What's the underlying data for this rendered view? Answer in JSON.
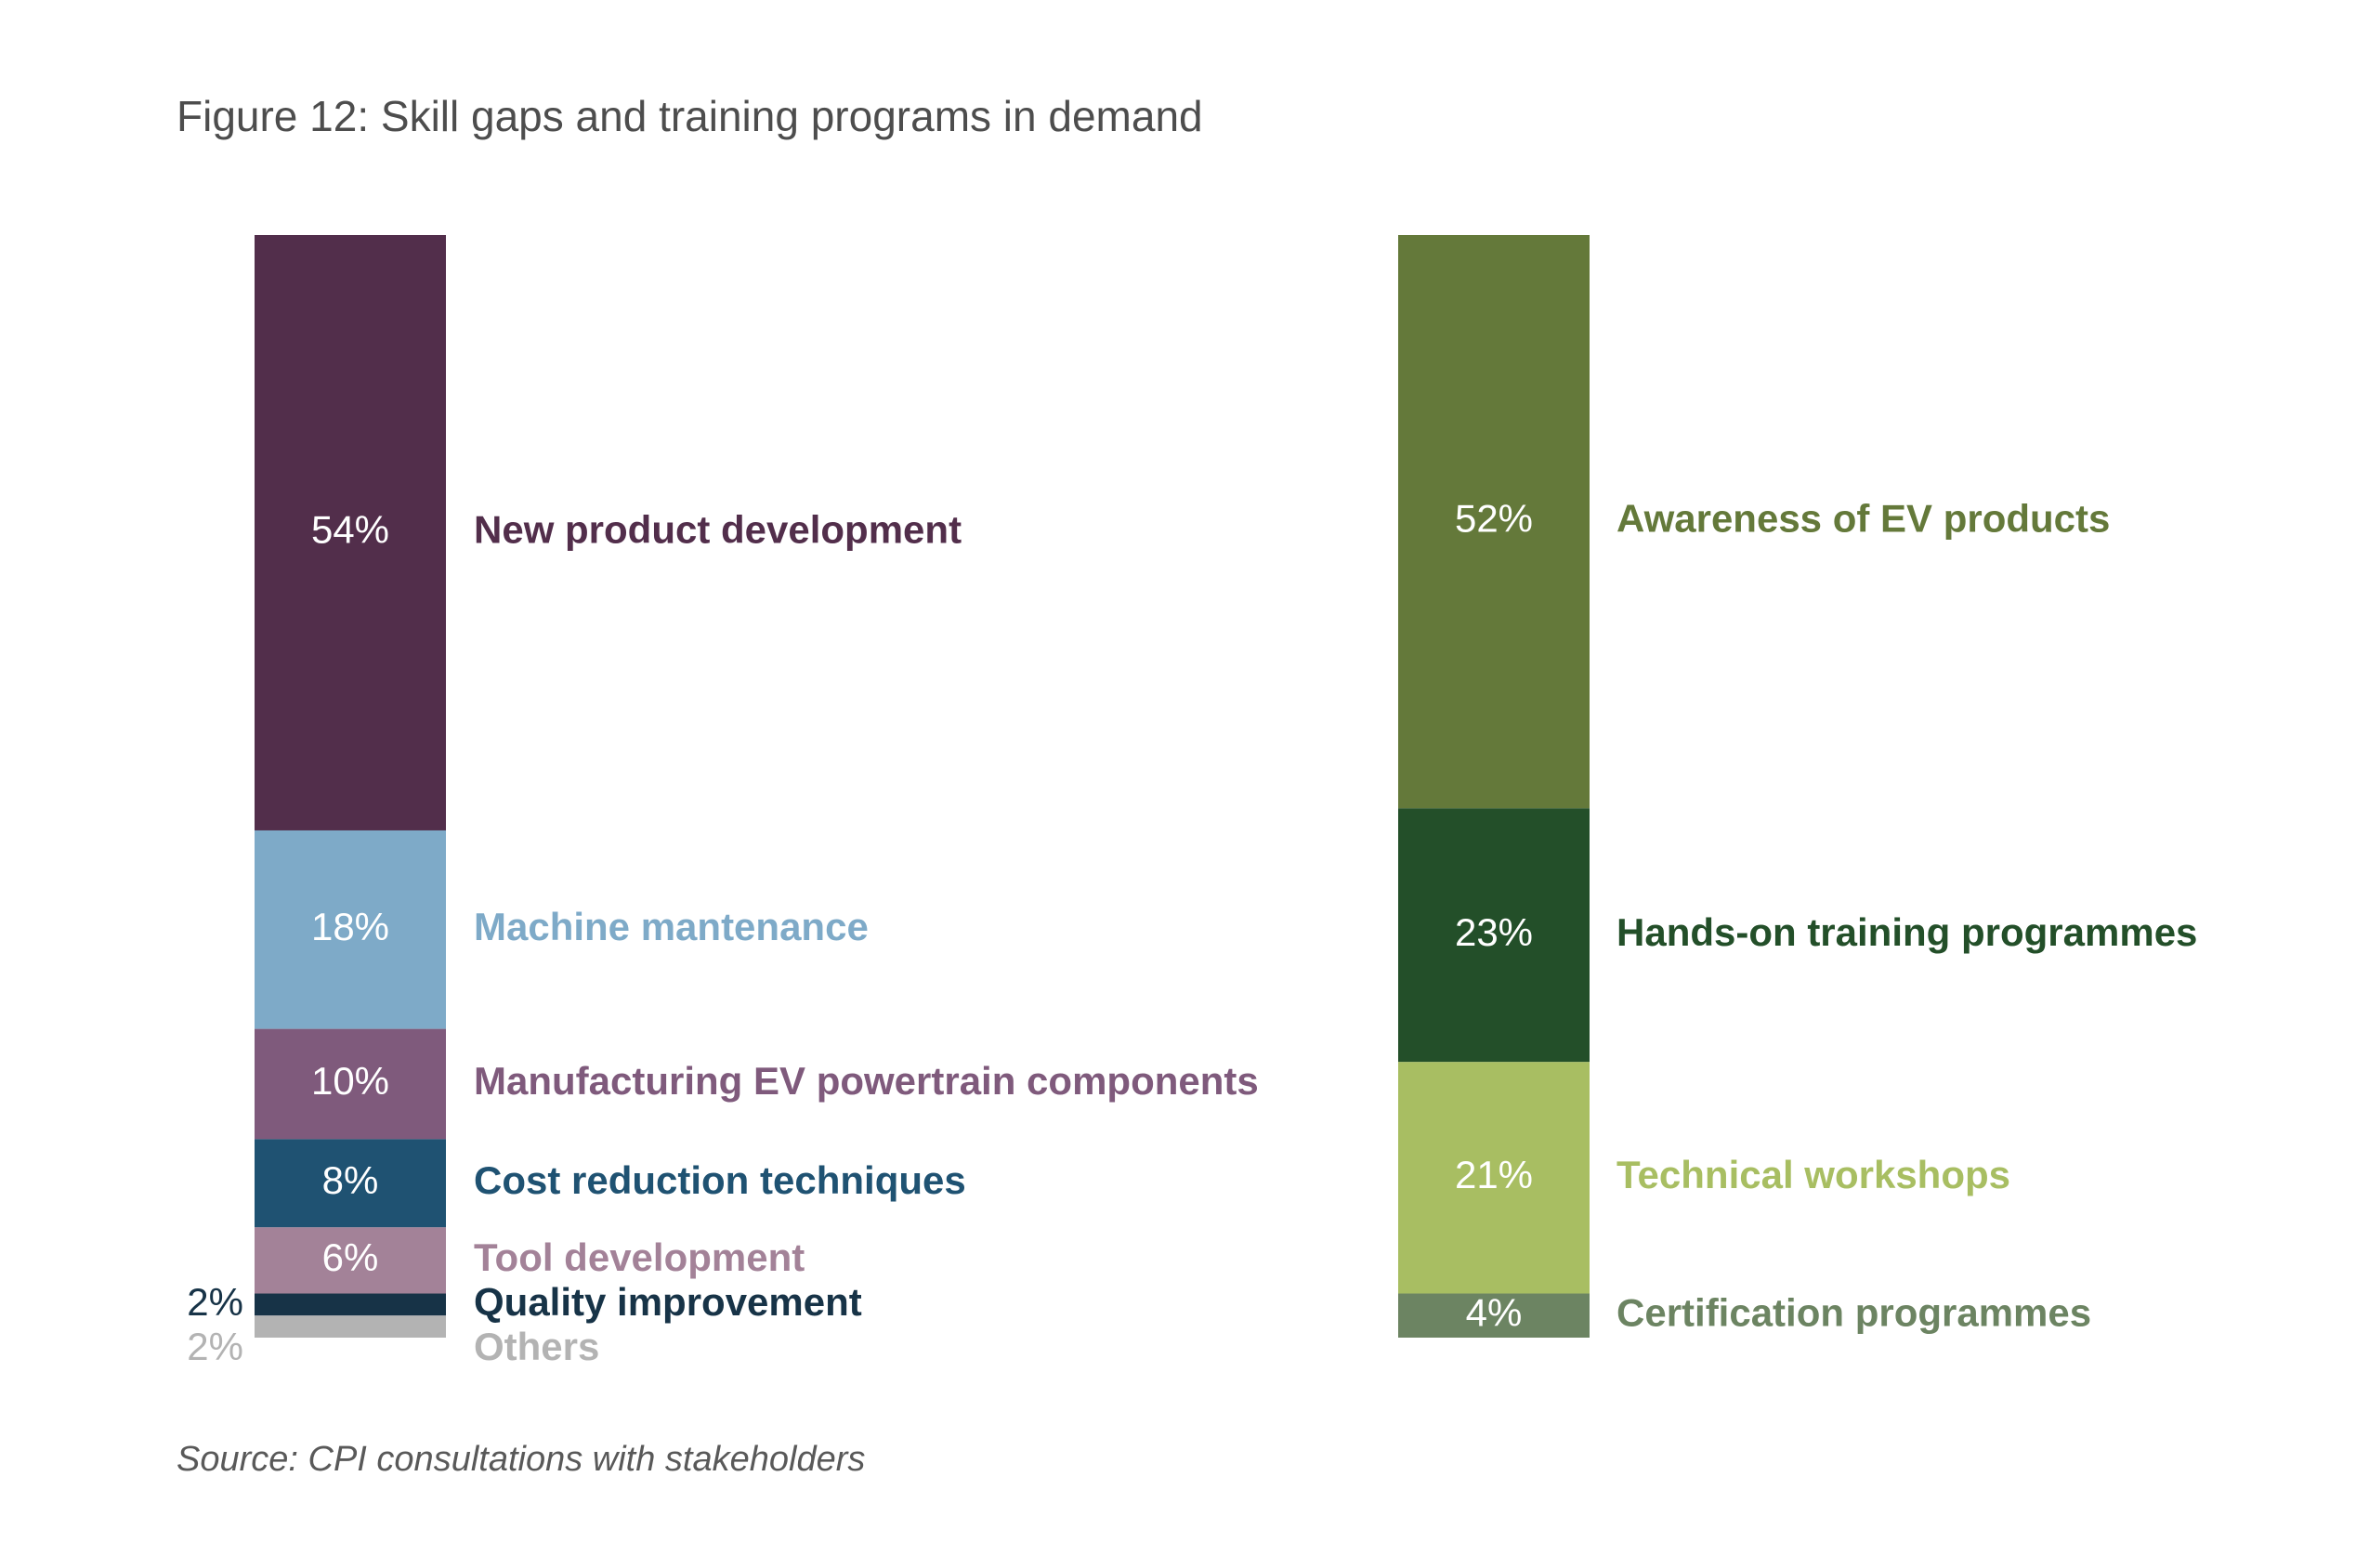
{
  "title": "Figure 12: Skill gaps and training programs in demand",
  "source": "Source: CPI consultations with stakeholders",
  "chart_data": [
    {
      "type": "bar",
      "stacked": true,
      "ylim": [
        0,
        100
      ],
      "series": [
        {
          "name": "New product development",
          "value": 54,
          "label": "54%",
          "color": "#522e4b",
          "label_color": "#522e4b",
          "value_inside": true
        },
        {
          "name": "Machine mantenance",
          "value": 18,
          "label": "18%",
          "color": "#7eaac8",
          "label_color": "#7eaac8",
          "value_inside": true
        },
        {
          "name": "Manufacturing EV powertrain components",
          "value": 10,
          "label": "10%",
          "color": "#7f5a7c",
          "label_color": "#7f5a7c",
          "value_inside": true
        },
        {
          "name": "Cost reduction techniques",
          "value": 8,
          "label": "8%",
          "color": "#1f5272",
          "label_color": "#1f5272",
          "value_inside": true
        },
        {
          "name": "Tool development",
          "value": 6,
          "label": "6%",
          "color": "#a38298",
          "label_color": "#a38298",
          "value_inside": true
        },
        {
          "name": "Quality improvement",
          "value": 2,
          "label": "2%",
          "color": "#173347",
          "label_color": "#173347",
          "value_inside": false
        },
        {
          "name": "Others",
          "value": 2,
          "label": "2%",
          "color": "#b3b3b3",
          "label_color": "#b3b3b3",
          "value_inside": false
        }
      ]
    },
    {
      "type": "bar",
      "stacked": true,
      "ylim": [
        0,
        100
      ],
      "series": [
        {
          "name": "Awareness of EV products",
          "value": 52,
          "label": "52%",
          "color": "#64793a",
          "label_color": "#64793a",
          "value_inside": true
        },
        {
          "name": "Hands-on training programmes",
          "value": 23,
          "label": "23%",
          "color": "#234f29",
          "label_color": "#234f29",
          "value_inside": true
        },
        {
          "name": "Technical workshops",
          "value": 21,
          "label": "21%",
          "color": "#a8be62",
          "label_color": "#a8be62",
          "value_inside": true
        },
        {
          "name": "Certification programmes",
          "value": 4,
          "label": "4%",
          "color": "#6c8462",
          "label_color": "#6c8462",
          "value_inside": true
        }
      ]
    }
  ]
}
